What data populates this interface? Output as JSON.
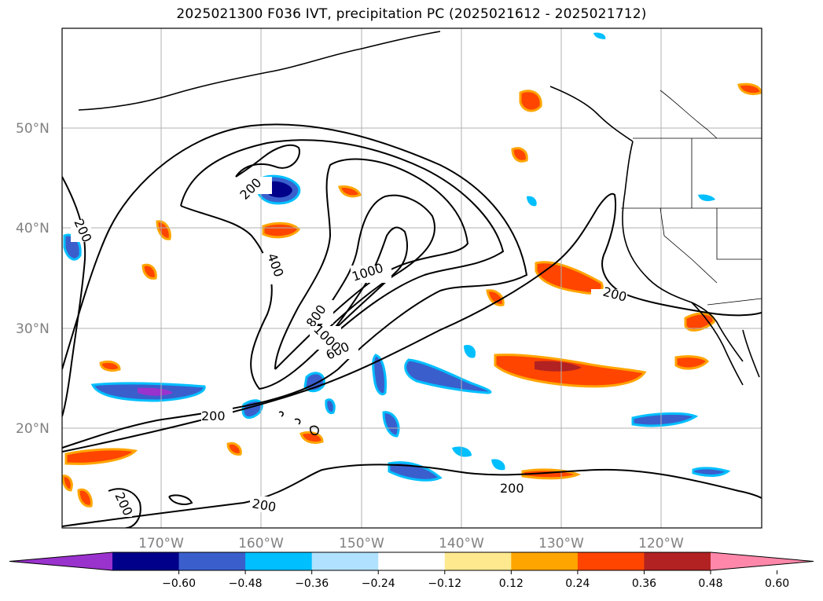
{
  "title": "2025021300 F036 IVT, precipitation PC (2025021612 - 2025021712)",
  "lat_labels": [
    "50°N",
    "40°N",
    "30°N",
    "20°N"
  ],
  "lon_labels": [
    "170°W",
    "160°W",
    "150°W",
    "140°W",
    "130°W",
    "120°W"
  ],
  "colorbar": {
    "ticks": [
      "−0.60",
      "−0.48",
      "−0.36",
      "−0.24",
      "−0.12",
      "0.12",
      "0.24",
      "0.36",
      "0.48",
      "0.60"
    ],
    "colors": [
      "#9a32cd",
      "#00008b",
      "#3a5fcd",
      "#00bfff",
      "#b0e2ff",
      "#ffffff",
      "#ffe98f",
      "#ffa500",
      "#ff4500",
      "#b22222",
      "#ff88aa"
    ]
  },
  "contour_labels": [
    "200",
    "200",
    "200",
    "200",
    "200",
    "200",
    "200",
    "400",
    "600",
    "800",
    "1000",
    "1000"
  ],
  "colors": {
    "land_line": "#000000",
    "grid": "#b0b0b0",
    "contour": "#000000"
  }
}
